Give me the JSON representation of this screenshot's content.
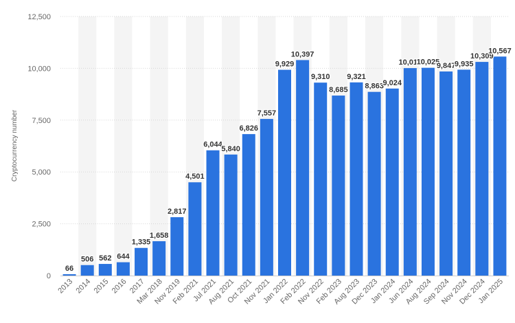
{
  "chart_data": {
    "type": "bar",
    "title": "",
    "xlabel": "",
    "ylabel": "Cryptocurrency number",
    "ylim": [
      0,
      12500
    ],
    "yticks": [
      0,
      2500,
      5000,
      7500,
      10000,
      12500
    ],
    "ytick_labels": [
      "0",
      "2,500",
      "5,000",
      "7,500",
      "10,000",
      "12,500"
    ],
    "grid": true,
    "bar_color": "#2a73df",
    "band_color": "#f4f4f4",
    "categories": [
      "2013",
      "2014",
      "2015",
      "2016",
      "2017",
      "Mar 2018",
      "Nov 2019",
      "Feb 2021",
      "Jul 2021",
      "Aug 2021",
      "Oct 2021",
      "Nov 2021",
      "Jan 2022",
      "Feb 2022",
      "Nov 2022",
      "Feb 2023",
      "Aug 2023",
      "Dec 2023",
      "Jan 2024",
      "Jun 2024",
      "Aug 2024",
      "Sep 2024",
      "Nov 2024",
      "Dec 2024",
      "Jan 2025"
    ],
    "values": [
      66,
      506,
      562,
      644,
      1335,
      1658,
      2817,
      4501,
      6044,
      5840,
      6826,
      7557,
      9929,
      10397,
      9310,
      8685,
      9321,
      8863,
      9024,
      10010,
      10025,
      9847,
      9935,
      10309,
      10567
    ],
    "value_labels": [
      "66",
      "506",
      "562",
      "644",
      "1,335",
      "1,658",
      "2,817",
      "4,501",
      "6,044",
      "5,840",
      "6,826",
      "7,557",
      "9,929",
      "10,397",
      "9,310",
      "8,685",
      "9,321",
      "8,863",
      "9,024",
      "10,010",
      "10,025",
      "9,847",
      "9,935",
      "10,309",
      "10,567"
    ]
  }
}
